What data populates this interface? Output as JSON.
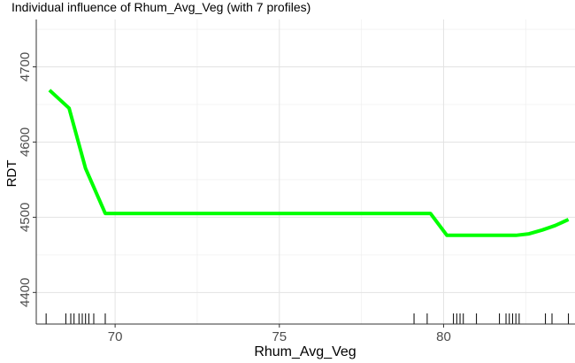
{
  "chart_data": {
    "type": "line",
    "title": "Individual influence of Rhum_Avg_Veg (with 7 profiles)",
    "xlabel": "Rhum_Avg_Veg",
    "ylabel": "RDT",
    "xlim": [
      67.6,
      84.0
    ],
    "ylim": [
      4358,
      4763
    ],
    "x_ticks": [
      70,
      75,
      80
    ],
    "y_ticks": [
      4400,
      4500,
      4600,
      4700
    ],
    "grid": true,
    "legend": "none",
    "series": [
      {
        "color": "#00ff00",
        "x": [
          68.0,
          68.6,
          69.1,
          69.7,
          70.5,
          72.0,
          75.0,
          78.0,
          79.6,
          80.1,
          80.6,
          81.5,
          82.2,
          82.6,
          83.0,
          83.4,
          83.8
        ],
        "values": [
          4669,
          4645,
          4565,
          4505,
          4505,
          4505,
          4505,
          4505,
          4505,
          4476,
          4476,
          4476,
          4476,
          4478,
          4483,
          4489,
          4497
        ]
      }
    ],
    "rug_x": [
      67.9,
      68.5,
      68.65,
      68.75,
      68.9,
      69.0,
      69.1,
      69.2,
      69.35,
      69.7,
      79.1,
      79.5,
      80.3,
      80.4,
      80.5,
      80.6,
      81.0,
      81.7,
      81.9,
      82.0,
      82.1,
      82.2,
      82.3,
      83.1,
      83.3,
      83.8
    ]
  }
}
